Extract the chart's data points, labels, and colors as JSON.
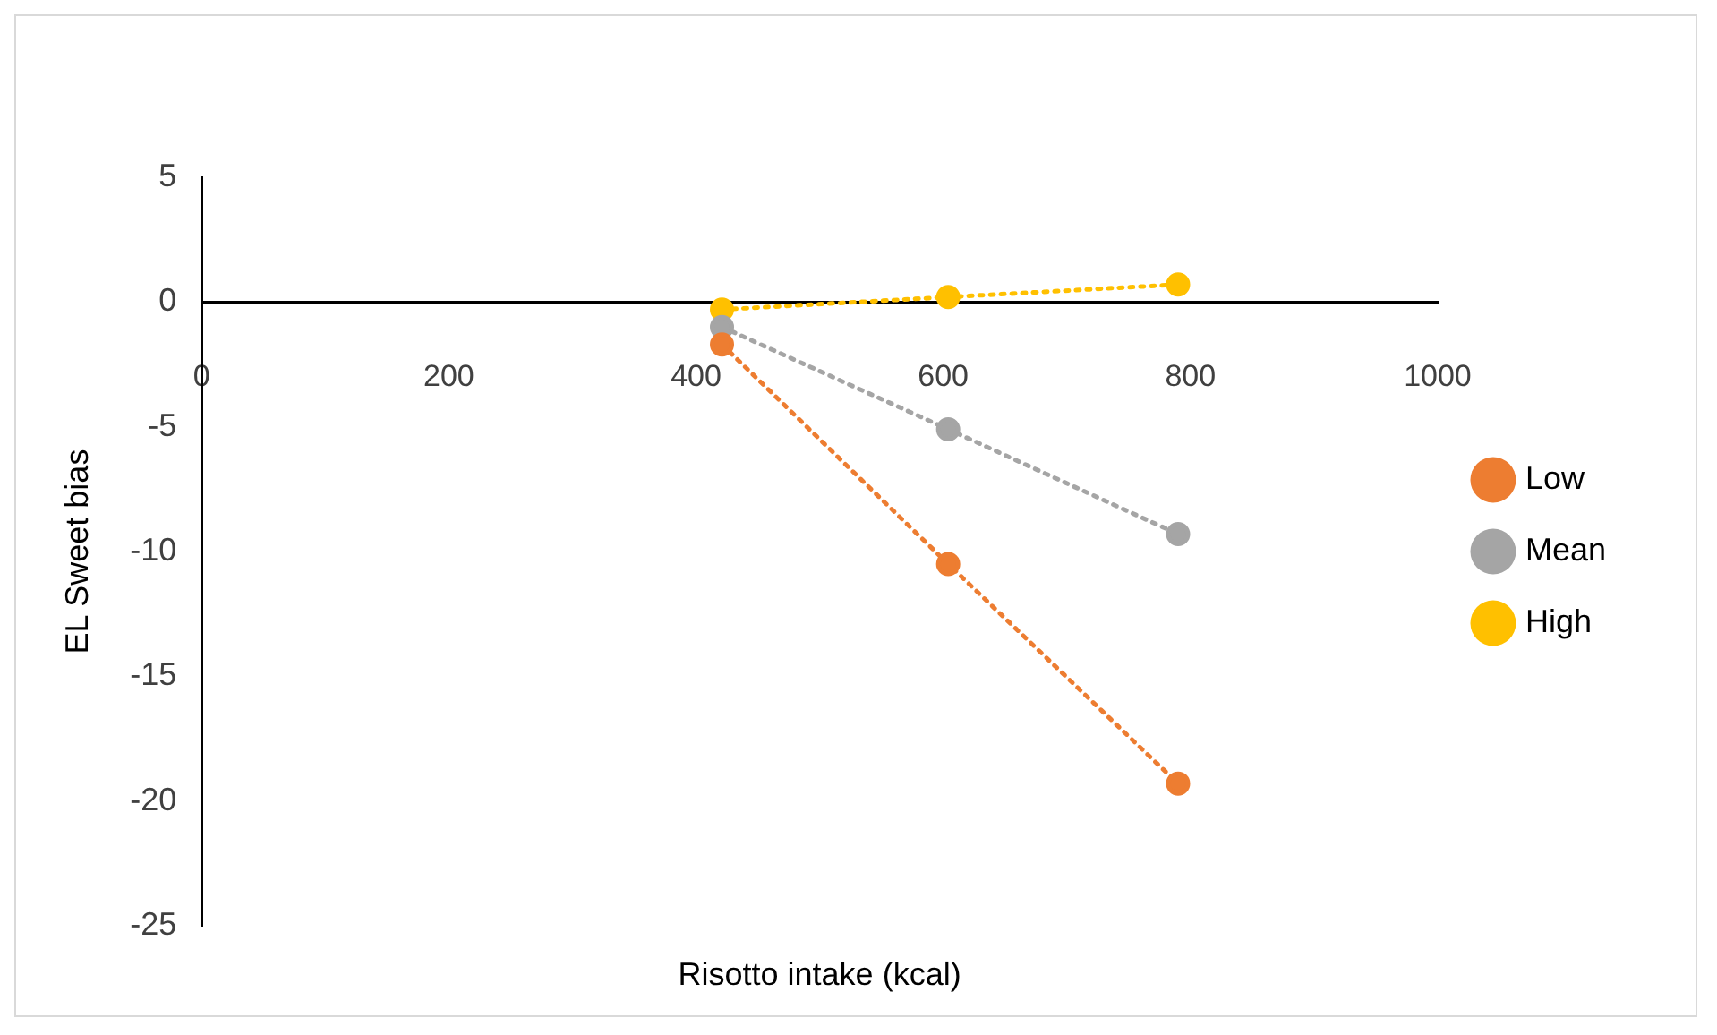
{
  "chart_data": {
    "type": "line",
    "xlabel": "Risotto intake (kcal)",
    "ylabel": "EL Sweet bias",
    "x": [
      421,
      604,
      790
    ],
    "series": [
      {
        "name": "Low",
        "color": "#ed7d31",
        "values": [
          -1.7,
          -10.5,
          -19.3
        ]
      },
      {
        "name": "Mean",
        "color": "#a5a5a5",
        "values": [
          -1.0,
          -5.1,
          -9.3
        ]
      },
      {
        "name": "High",
        "color": "#ffc000",
        "values": [
          -0.3,
          0.2,
          0.7
        ]
      }
    ],
    "xlim": [
      0,
      1000
    ],
    "xticks": [
      0,
      200,
      400,
      600,
      800,
      1000
    ],
    "ylim": [
      -25,
      5
    ],
    "yticks": [
      -25,
      -20,
      -15,
      -10,
      -5,
      0,
      5
    ],
    "grid": false,
    "legend": "right",
    "marker": "circle",
    "line_style": "dotted"
  }
}
